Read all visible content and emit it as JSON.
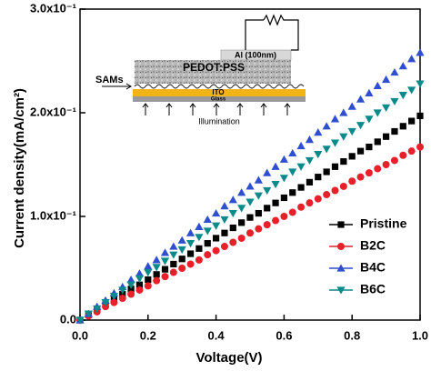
{
  "chart_data": {
    "type": "scatter",
    "x_label": "Voltage(V)",
    "y_label": "Current density(mA/cm²)",
    "x": [
      0,
      0.025,
      0.05,
      0.075,
      0.1,
      0.125,
      0.15,
      0.175,
      0.2,
      0.225,
      0.25,
      0.275,
      0.3,
      0.325,
      0.35,
      0.375,
      0.4,
      0.425,
      0.45,
      0.475,
      0.5,
      0.525,
      0.55,
      0.575,
      0.6,
      0.625,
      0.65,
      0.675,
      0.7,
      0.725,
      0.75,
      0.775,
      0.8,
      0.825,
      0.85,
      0.875,
      0.9,
      0.925,
      0.95,
      0.975,
      1
    ],
    "series": [
      {
        "name": "Pristine",
        "color": "#000000",
        "marker": "square",
        "values": [
          0,
          0.005,
          0.01,
          0.015,
          0.02,
          0.025,
          0.03,
          0.034,
          0.039,
          0.044,
          0.049,
          0.054,
          0.059,
          0.064,
          0.069,
          0.074,
          0.079,
          0.084,
          0.089,
          0.094,
          0.099,
          0.103,
          0.108,
          0.113,
          0.118,
          0.123,
          0.128,
          0.133,
          0.138,
          0.143,
          0.148,
          0.153,
          0.158,
          0.163,
          0.167,
          0.172,
          0.177,
          0.182,
          0.187,
          0.192,
          0.197
        ]
      },
      {
        "name": "B2C",
        "color": "#e8202a",
        "marker": "circle",
        "values": [
          0,
          0.004,
          0.008,
          0.013,
          0.017,
          0.021,
          0.025,
          0.029,
          0.033,
          0.038,
          0.042,
          0.046,
          0.05,
          0.054,
          0.058,
          0.063,
          0.067,
          0.071,
          0.075,
          0.079,
          0.084,
          0.088,
          0.092,
          0.096,
          0.1,
          0.104,
          0.109,
          0.113,
          0.117,
          0.121,
          0.125,
          0.129,
          0.134,
          0.138,
          0.142,
          0.146,
          0.15,
          0.154,
          0.159,
          0.163,
          0.167
        ]
      },
      {
        "name": "B4C",
        "color": "#2f4fd0",
        "marker": "triangle-up",
        "values": [
          0,
          0.006,
          0.013,
          0.019,
          0.026,
          0.032,
          0.039,
          0.045,
          0.052,
          0.058,
          0.065,
          0.071,
          0.077,
          0.084,
          0.09,
          0.097,
          0.103,
          0.11,
          0.116,
          0.123,
          0.129,
          0.135,
          0.142,
          0.148,
          0.155,
          0.161,
          0.168,
          0.174,
          0.181,
          0.187,
          0.194,
          0.2,
          0.206,
          0.213,
          0.219,
          0.226,
          0.232,
          0.239,
          0.245,
          0.252,
          0.258
        ]
      },
      {
        "name": "B6C",
        "color": "#0a8a8a",
        "marker": "triangle-down",
        "values": [
          0,
          0.006,
          0.011,
          0.017,
          0.023,
          0.029,
          0.034,
          0.04,
          0.046,
          0.051,
          0.057,
          0.063,
          0.068,
          0.074,
          0.08,
          0.086,
          0.091,
          0.097,
          0.103,
          0.108,
          0.114,
          0.12,
          0.125,
          0.131,
          0.137,
          0.143,
          0.148,
          0.154,
          0.16,
          0.165,
          0.171,
          0.177,
          0.182,
          0.188,
          0.194,
          0.2,
          0.205,
          0.211,
          0.217,
          0.222,
          0.228
        ]
      }
    ],
    "xlim": [
      0,
      1
    ],
    "ylim": [
      0,
      0.3
    ],
    "xticks": [
      {
        "value": 0,
        "label": "0.0"
      },
      0.2,
      0.4,
      0.6,
      0.8,
      {
        "value": 1,
        "label": "1.0"
      }
    ],
    "yticks": [
      {
        "value": 0,
        "label": "0.0"
      },
      {
        "value": 0.1,
        "label": "1.0x10⁻¹"
      },
      {
        "value": 0.2,
        "label": "2.0x10⁻¹"
      },
      {
        "value": 0.3,
        "label": "3.0x10⁻¹"
      }
    ],
    "grid": false,
    "legend": "lower right",
    "annotations": [
      "Al (100nm)",
      "PEDOT:PSS",
      "SAMs",
      "ITO",
      "Glass",
      "Illumination"
    ]
  }
}
